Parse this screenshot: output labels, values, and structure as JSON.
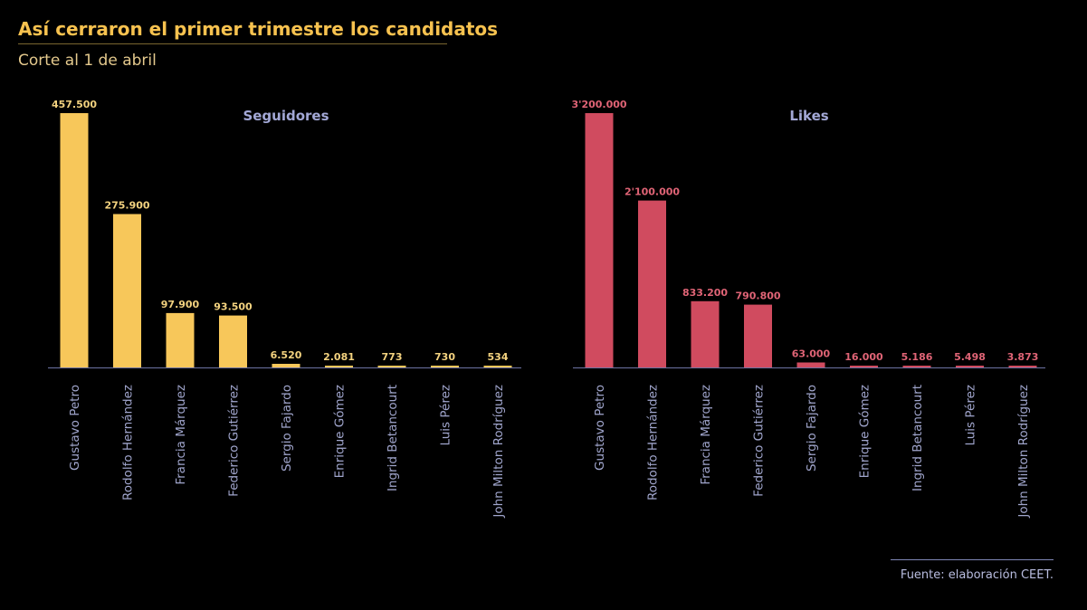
{
  "header": {
    "title": "Así cerraron el primer trimestre los candidatos",
    "subtitle": "Corte al 1 de abril"
  },
  "chart_data": [
    {
      "type": "bar",
      "title": "Seguidores",
      "categories": [
        "Gustavo Petro",
        "Rodolfo Hernández",
        "Francia Márquez",
        "Federico Gutiérrez",
        "Sergio Fajardo",
        "Enrique Gómez",
        "Ingrid Betancourt",
        "Luis Pérez",
        "John Milton Rodríguez"
      ],
      "values": [
        457500,
        275900,
        97900,
        93500,
        6520,
        2081,
        773,
        730,
        534
      ],
      "value_labels": [
        "457.500",
        "275.900",
        "97.900",
        "93.500",
        "6.520",
        "2.081",
        "773",
        "730",
        "534"
      ],
      "ylim": [
        0,
        457500
      ],
      "color": "#f7c75a",
      "label_color": "#f3d27f",
      "grid": false,
      "legend": "none"
    },
    {
      "type": "bar",
      "title": "Likes",
      "categories": [
        "Gustavo Petro",
        "Rodolfo Hernández",
        "Francia Márquez",
        "Federico Gutiérrez",
        "Sergio Fajardo",
        "Enrique Gómez",
        "Ingrid Betancourt",
        "Luis Pérez",
        "John Milton Rodríguez"
      ],
      "values": [
        3200000,
        2100000,
        833200,
        790800,
        63000,
        16000,
        5186,
        5498,
        3873
      ],
      "value_labels": [
        "3'200.000",
        "2'100.000",
        "833.200",
        "790.800",
        "63.000",
        "16.000",
        "5.186",
        "5.498",
        "3.873"
      ],
      "ylim": [
        0,
        3200000
      ],
      "color": "#d04b5f",
      "label_color": "#e06476",
      "grid": false,
      "legend": "none"
    }
  ],
  "footer": {
    "source": "Fuente: elaboración CEET."
  },
  "colors": {
    "background": "#000000",
    "title": "#f7c24f",
    "subtitle": "#e4c98d",
    "panel_title": "#a3a8d6",
    "category_label": "#a0a5cc",
    "axis": "#6d73a3"
  }
}
